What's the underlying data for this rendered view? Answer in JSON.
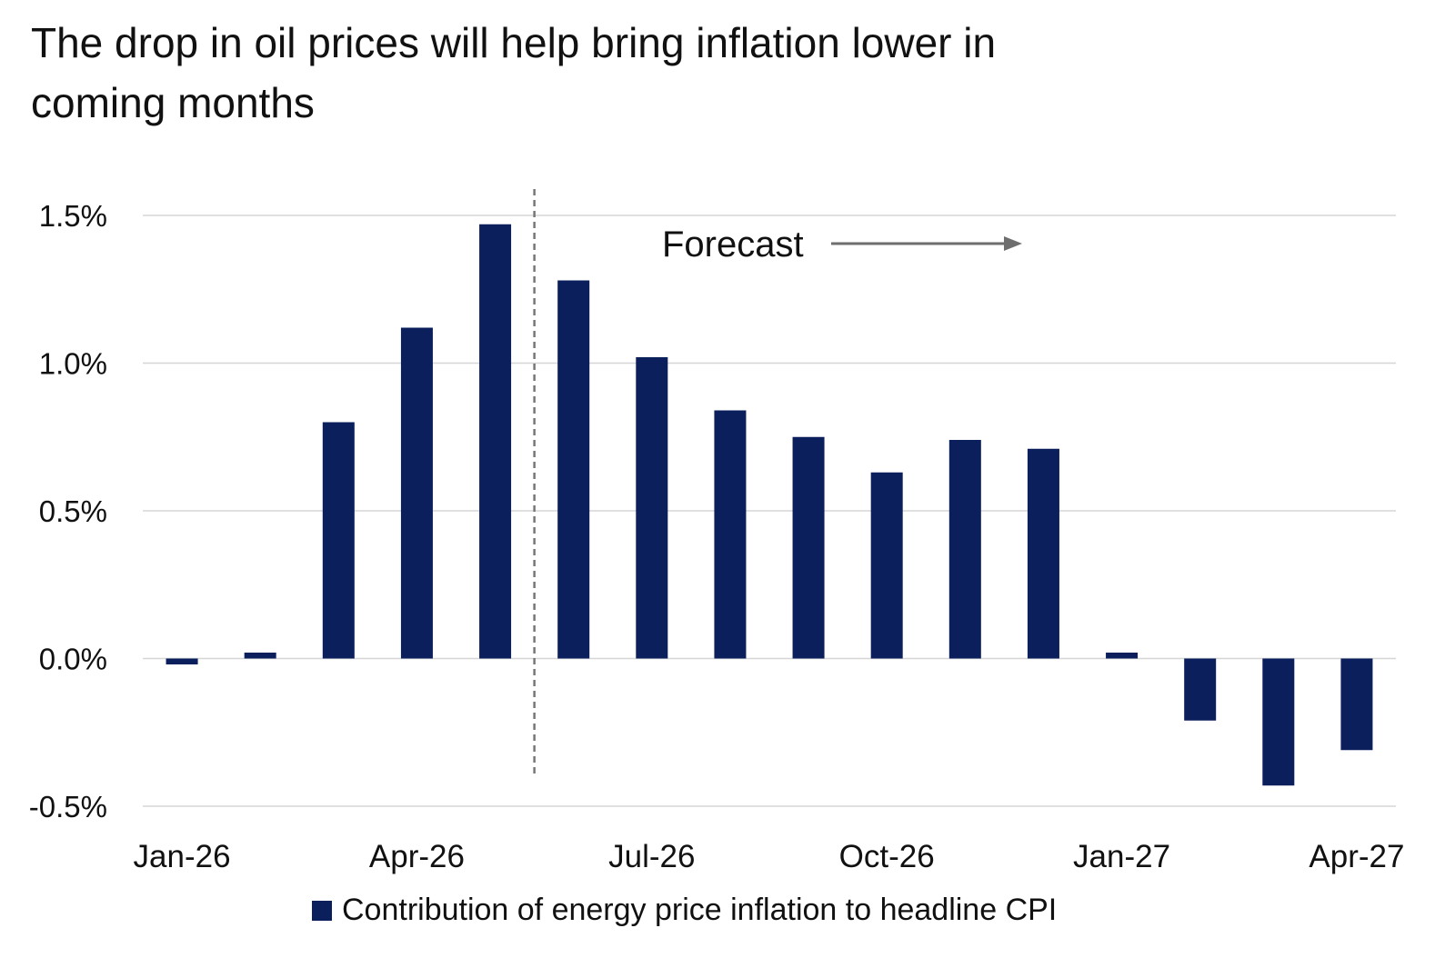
{
  "chart_data": {
    "type": "bar",
    "title": "The drop in oil prices will help bring inflation lower in coming months",
    "xlabel": "",
    "ylabel": "",
    "categories": [
      "Jan-26",
      "Feb-26",
      "Mar-26",
      "Apr-26",
      "May-26",
      "Jun-26",
      "Jul-26",
      "Aug-26",
      "Sep-26",
      "Oct-26",
      "Nov-26",
      "Dec-26",
      "Jan-27",
      "Feb-27",
      "Mar-27",
      "Apr-27"
    ],
    "x_tick_labels": [
      "Jan-26",
      "Apr-26",
      "Jul-26",
      "Oct-26",
      "Jan-27",
      "Apr-27"
    ],
    "y_tick_labels": [
      "1.5%",
      "1.0%",
      "0.5%",
      "0.0%",
      "-0.5%"
    ],
    "ylim": [
      -0.5,
      1.5
    ],
    "grid": true,
    "legend_position": "bottom",
    "series": [
      {
        "name": "Contribution of energy price inflation to headline CPI",
        "color": "#0b1f5c",
        "values": [
          -0.02,
          0.02,
          0.8,
          1.12,
          1.47,
          1.28,
          1.02,
          0.84,
          0.75,
          0.63,
          0.74,
          0.71,
          0.02,
          -0.21,
          -0.43,
          -0.31
        ]
      }
    ],
    "annotations": [
      {
        "text": "Forecast",
        "arrow": "right",
        "divider_after_category": "May-26",
        "divider_style": "dashed"
      }
    ]
  }
}
